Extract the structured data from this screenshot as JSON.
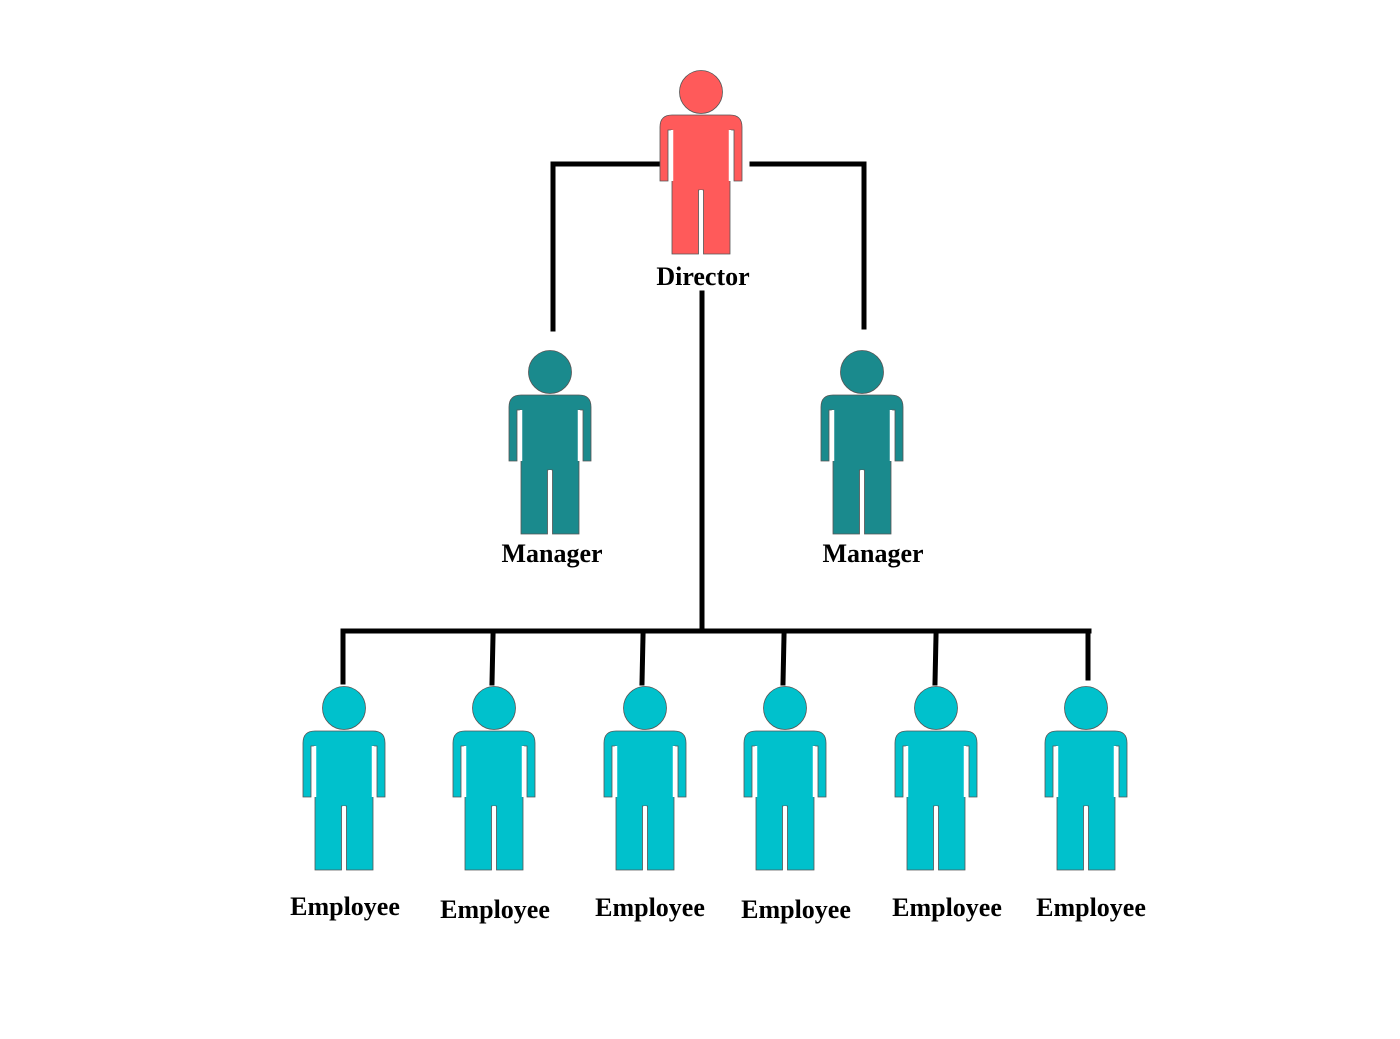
{
  "colors": {
    "director": "#ff5a5a",
    "manager": "#1a8a8d",
    "employee": "#00c1cc",
    "connector": "#000000"
  },
  "director": {
    "label": "Director",
    "icon": "person-icon"
  },
  "managers": [
    {
      "label": "Manager",
      "icon": "person-icon"
    },
    {
      "label": "Manager",
      "icon": "person-icon"
    }
  ],
  "employees": [
    {
      "label": "Employee",
      "icon": "person-icon"
    },
    {
      "label": "Employee",
      "icon": "person-icon"
    },
    {
      "label": "Employee",
      "icon": "person-icon"
    },
    {
      "label": "Employee",
      "icon": "person-icon"
    },
    {
      "label": "Employee",
      "icon": "person-icon"
    },
    {
      "label": "Employee",
      "icon": "person-icon"
    }
  ]
}
